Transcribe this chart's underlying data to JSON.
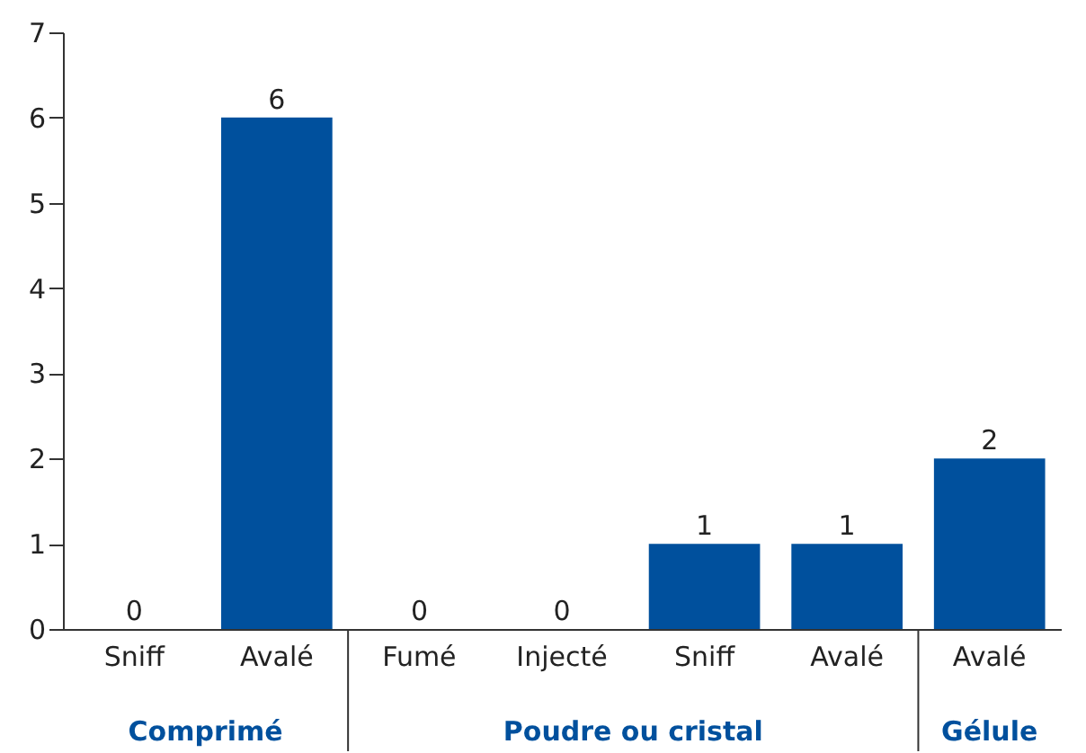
{
  "chart_data": {
    "type": "bar",
    "categories": [
      "Sniff",
      "Avalé",
      "Fumé",
      "Injecté",
      "Sniff",
      "Avalé",
      "Avalé"
    ],
    "values": [
      0,
      6,
      0,
      0,
      1,
      1,
      2
    ],
    "color": "#00509d",
    "ylim": [
      0,
      7
    ],
    "yticks": [
      0,
      1,
      2,
      3,
      4,
      5,
      6,
      7
    ],
    "data_labels": true,
    "grid": false,
    "annotations": [
      "Comprimé",
      "Poudre ou cristal",
      "Gélule"
    ]
  }
}
